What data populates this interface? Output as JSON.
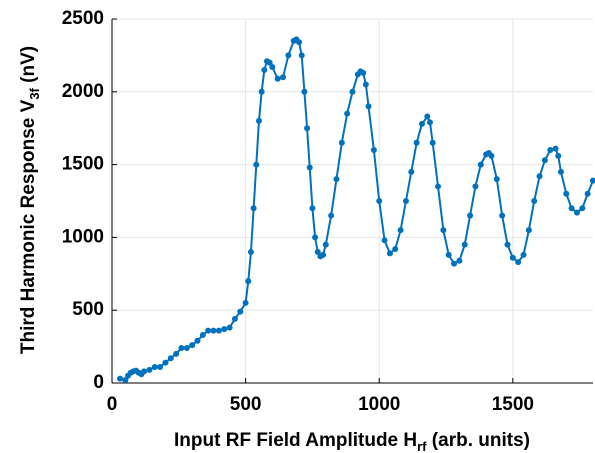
{
  "chart_data": {
    "type": "line",
    "x_label": {
      "text": "Input RF Field Amplitude H",
      "subscript": "rf",
      "suffix": " (arb. units)"
    },
    "y_label": {
      "text": "Third Harmonic Response V",
      "subscript": "3f",
      "suffix": " (nV)"
    },
    "color": "#0072bd",
    "markers": true,
    "grid": true,
    "xlim": [
      0,
      1800
    ],
    "xticks": [
      0,
      500,
      1000,
      1500
    ],
    "ylim": [
      0,
      2500
    ],
    "yticks": [
      0,
      500,
      1000,
      1500,
      2000,
      2500
    ],
    "x": [
      30,
      50,
      60,
      70,
      80,
      90,
      100,
      110,
      120,
      140,
      160,
      180,
      200,
      220,
      240,
      260,
      280,
      300,
      320,
      340,
      360,
      380,
      400,
      420,
      440,
      460,
      480,
      500,
      510,
      520,
      530,
      540,
      550,
      560,
      570,
      580,
      590,
      600,
      620,
      640,
      660,
      680,
      690,
      700,
      710,
      720,
      730,
      740,
      750,
      760,
      770,
      780,
      790,
      800,
      820,
      840,
      860,
      880,
      900,
      920,
      930,
      940,
      950,
      960,
      980,
      1000,
      1020,
      1040,
      1060,
      1080,
      1100,
      1120,
      1140,
      1160,
      1180,
      1190,
      1200,
      1220,
      1240,
      1260,
      1280,
      1300,
      1320,
      1340,
      1360,
      1380,
      1400,
      1410,
      1420,
      1440,
      1460,
      1480,
      1500,
      1520,
      1540,
      1560,
      1580,
      1600,
      1620,
      1640,
      1660,
      1670,
      1680,
      1700,
      1720,
      1740,
      1760,
      1780,
      1800
    ],
    "values": [
      30,
      20,
      50,
      70,
      80,
      85,
      70,
      60,
      80,
      90,
      110,
      110,
      140,
      170,
      200,
      240,
      240,
      260,
      290,
      330,
      360,
      360,
      360,
      370,
      380,
      440,
      490,
      550,
      700,
      900,
      1200,
      1500,
      1800,
      2000,
      2150,
      2210,
      2200,
      2170,
      2090,
      2100,
      2250,
      2350,
      2360,
      2340,
      2250,
      2000,
      1750,
      1480,
      1200,
      1000,
      900,
      870,
      880,
      950,
      1150,
      1400,
      1650,
      1850,
      2000,
      2120,
      2140,
      2130,
      2050,
      1900,
      1600,
      1250,
      980,
      890,
      920,
      1050,
      1250,
      1450,
      1650,
      1780,
      1830,
      1790,
      1650,
      1350,
      1050,
      880,
      820,
      840,
      950,
      1150,
      1350,
      1500,
      1570,
      1580,
      1560,
      1400,
      1150,
      950,
      860,
      830,
      880,
      1050,
      1250,
      1420,
      1530,
      1600,
      1610,
      1560,
      1450,
      1300,
      1200,
      1170,
      1200,
      1300,
      1390
    ]
  }
}
